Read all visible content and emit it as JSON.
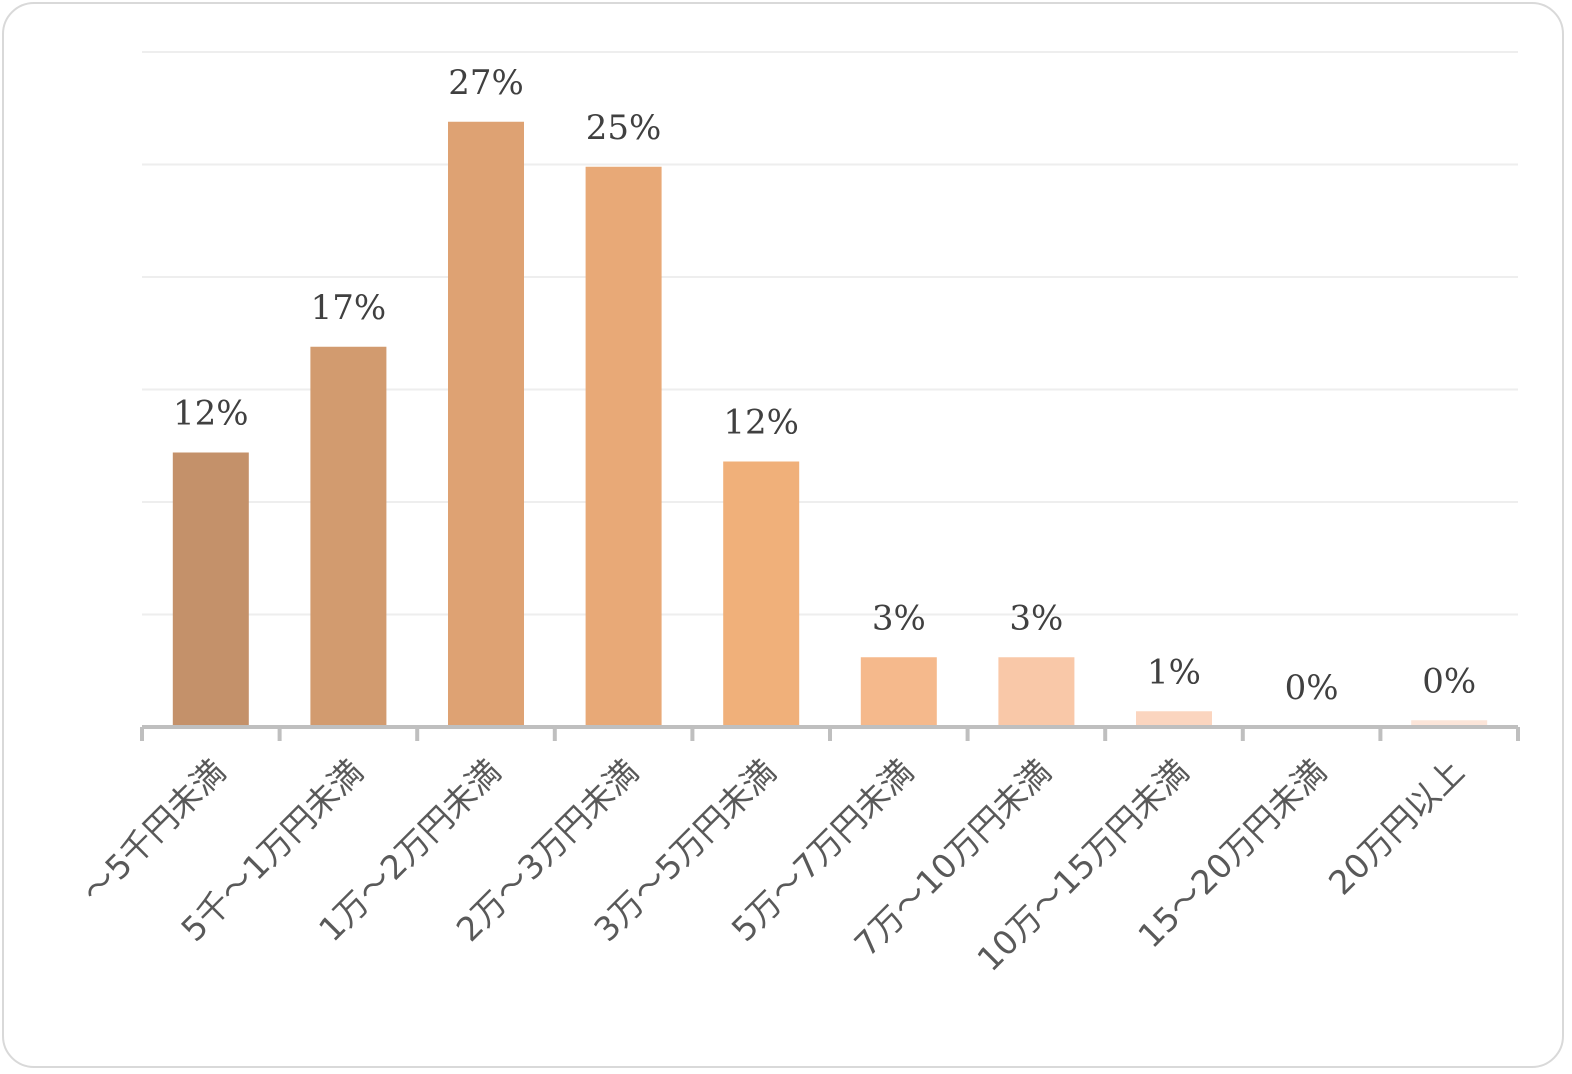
{
  "chart_data": {
    "type": "bar",
    "categories": [
      "～5千円未満",
      "5千～1万円未満",
      "1万～2万円未満",
      "2万～3万円未満",
      "3万～5万円未満",
      "5万～7万円未満",
      "7万～10万円未満",
      "10万～15万円未満",
      "15～20万円未満",
      "20万円以上"
    ],
    "values": [
      12,
      17,
      27,
      25,
      12,
      3,
      3,
      1,
      0,
      0
    ],
    "value_labels": [
      "12%",
      "17%",
      "27%",
      "25%",
      "12%",
      "3%",
      "3%",
      "1%",
      "0%",
      "0%"
    ],
    "ylim": [
      0,
      30
    ],
    "grid": true,
    "legend": "none",
    "colors": [
      "#c4916a",
      "#d29b6f",
      "#dea273",
      "#e8a977",
      "#f0b07a",
      "#f5b98c",
      "#f9c8a8",
      "#fbd5bf",
      "#fde2d3",
      "#fce5d9"
    ],
    "raw_values": [
      12.2,
      16.9,
      26.9,
      24.9,
      11.8,
      3.1,
      3.1,
      0.7,
      0.0,
      0.3
    ]
  },
  "style": {
    "gridline_color": "#eeeeee",
    "axis_color": "#bfbfbf",
    "label_color": "#404040"
  }
}
